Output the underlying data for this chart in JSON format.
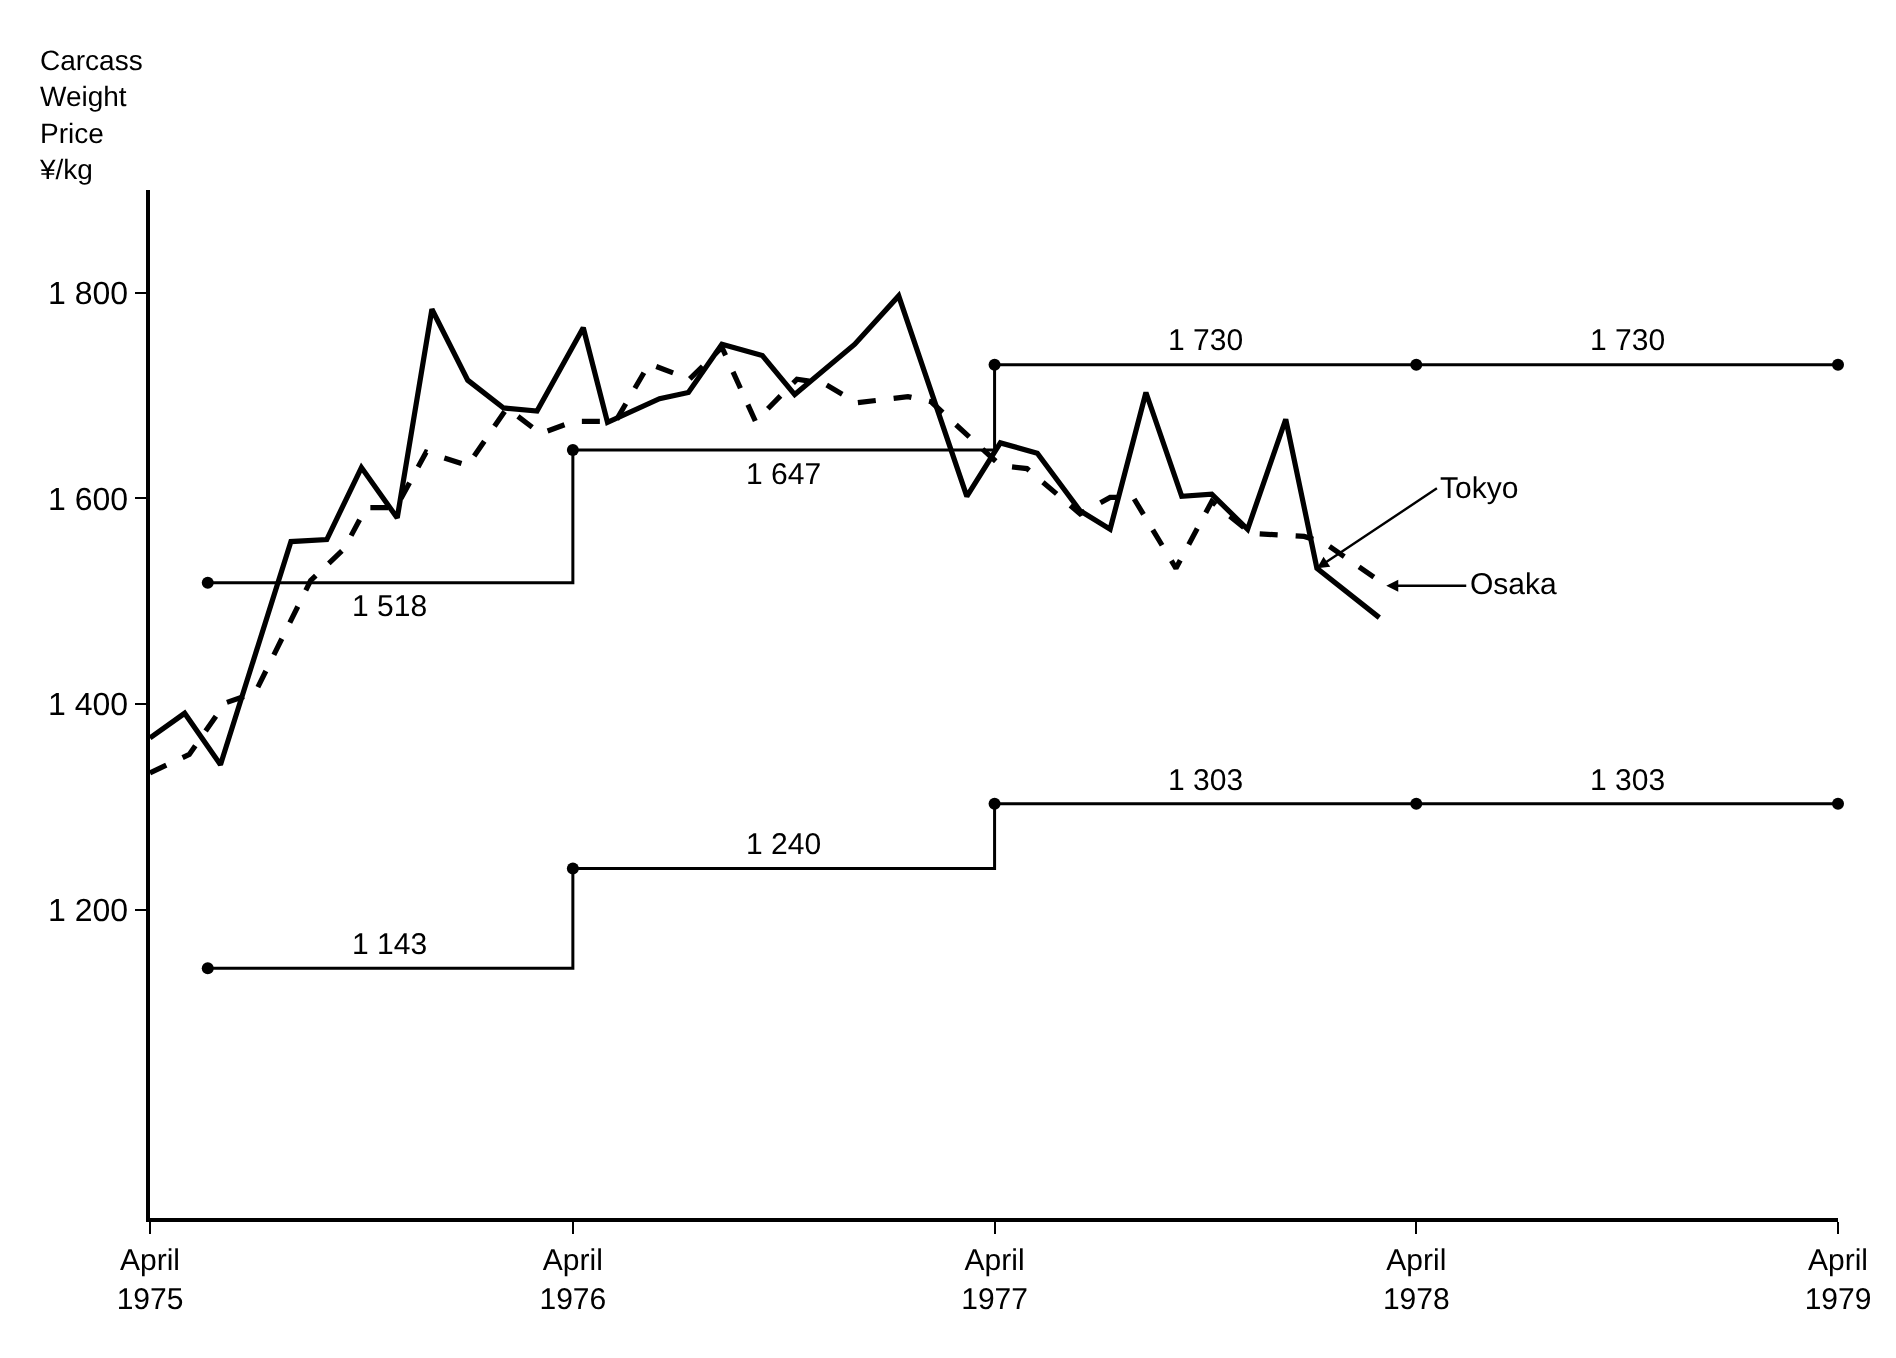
{
  "chart_data": {
    "type": "line",
    "ylabel": "Carcass\nWeight\nPrice\n¥/kg",
    "xlim": [
      "1975-04-01",
      "1979-04-01"
    ],
    "xticks": [
      {
        "value": "1975-04-01",
        "label": "April\n1975"
      },
      {
        "value": "1976-04-01",
        "label": "April\n1976"
      },
      {
        "value": "1977-04-01",
        "label": "April\n1977"
      },
      {
        "value": "1978-04-01",
        "label": "April\n1978"
      },
      {
        "value": "1979-04-01",
        "label": "April\n1979"
      }
    ],
    "ylim": [
      900,
      1900
    ],
    "yticks": [
      {
        "value": 1200,
        "label": "1 200"
      },
      {
        "value": 1400,
        "label": "1 400"
      },
      {
        "value": 1600,
        "label": "1 600"
      },
      {
        "value": 1800,
        "label": "1 800"
      }
    ],
    "grid": false,
    "legend": "right",
    "annotations": [
      {
        "text": "1 518",
        "x": "1975-10-25",
        "y": 1518
      },
      {
        "text": "1 647",
        "x": "1976-10-01",
        "y": 1647
      },
      {
        "text": "1 730",
        "x": "1977-10-01",
        "y": 1730
      },
      {
        "text": "1 730",
        "x": "1978-10-01",
        "y": 1730
      },
      {
        "text": "1 143",
        "x": "1975-10-25",
        "y": 1143
      },
      {
        "text": "1 240",
        "x": "1976-10-01",
        "y": 1240
      },
      {
        "text": "1 303",
        "x": "1977-10-01",
        "y": 1303
      },
      {
        "text": "1 303",
        "x": "1978-10-01",
        "y": 1303
      }
    ],
    "series": [
      {
        "name": "Tokyo",
        "color": "#000000",
        "line_style": "solid",
        "marker": "none",
        "x": [
          "1975-04-01",
          "1975-05-01",
          "1975-06-01",
          "1975-08-01",
          "1975-09-01",
          "1975-10-01",
          "1975-11-01",
          "1975-12-01",
          "1976-01-01",
          "1976-02-01",
          "1976-03-01",
          "1976-04-10",
          "1976-05-01",
          "1976-06-15",
          "1976-07-10",
          "1976-08-08",
          "1976-09-12",
          "1976-10-10",
          "1976-12-01",
          "1977-01-08",
          "1977-03-08",
          "1977-04-06",
          "1977-05-08",
          "1977-06-14",
          "1977-07-10",
          "1977-08-10",
          "1977-09-10",
          "1977-10-06",
          "1977-11-06",
          "1977-12-09",
          "1978-01-05",
          "1978-02-28"
        ],
        "values": [
          1367,
          1391,
          1341,
          1558,
          1560,
          1630,
          1581,
          1784,
          1715,
          1688,
          1685,
          1766,
          1674,
          1697,
          1703,
          1750,
          1739,
          1701,
          1750,
          1797,
          1602,
          1654,
          1644,
          1588,
          1570,
          1703,
          1602,
          1604,
          1570,
          1677,
          1532,
          1484
        ]
      },
      {
        "name": "Osaka",
        "color": "#000000",
        "line_style": "dashed",
        "marker": "none",
        "x": [
          "1975-04-01",
          "1975-05-05",
          "1975-06-05",
          "1975-07-01",
          "1975-08-18",
          "1975-09-16",
          "1975-10-05",
          "1975-10-31",
          "1975-11-26",
          "1976-01-01",
          "1976-02-04",
          "1976-03-04",
          "1976-04-02",
          "1976-05-08",
          "1976-06-06",
          "1976-07-11",
          "1976-08-08",
          "1976-09-06",
          "1976-10-12",
          "1976-11-04",
          "1976-12-03",
          "1977-01-16",
          "1977-02-05",
          "1977-04-06",
          "1977-04-29",
          "1977-06-14",
          "1977-07-10",
          "1977-07-30",
          "1977-09-05",
          "1977-10-06",
          "1977-11-09",
          "1977-12-25",
          "1978-01-11",
          "1978-03-06"
        ],
        "values": [
          1333,
          1351,
          1401,
          1411,
          1520,
          1551,
          1591,
          1591,
          1645,
          1632,
          1688,
          1663,
          1675,
          1675,
          1731,
          1716,
          1747,
          1675,
          1716,
          1712,
          1693,
          1699,
          1694,
          1632,
          1629,
          1585,
          1601,
          1601,
          1532,
          1597,
          1566,
          1563,
          1557,
          1515
        ]
      },
      {
        "type": "step",
        "color": "#000000",
        "line_style": "solid",
        "marker": "circle",
        "x": [
          "1975-05-21",
          "1976-04-01",
          "1977-04-01",
          "1978-04-01",
          "1979-04-01"
        ],
        "values": [
          1518,
          1647,
          1730,
          1730,
          1730
        ]
      },
      {
        "type": "step",
        "color": "#000000",
        "line_style": "solid",
        "marker": "circle",
        "x": [
          "1975-05-21",
          "1976-04-01",
          "1977-04-01",
          "1978-04-01",
          "1979-04-01"
        ],
        "values": [
          1143,
          1240,
          1303,
          1303,
          1303
        ]
      }
    ]
  }
}
